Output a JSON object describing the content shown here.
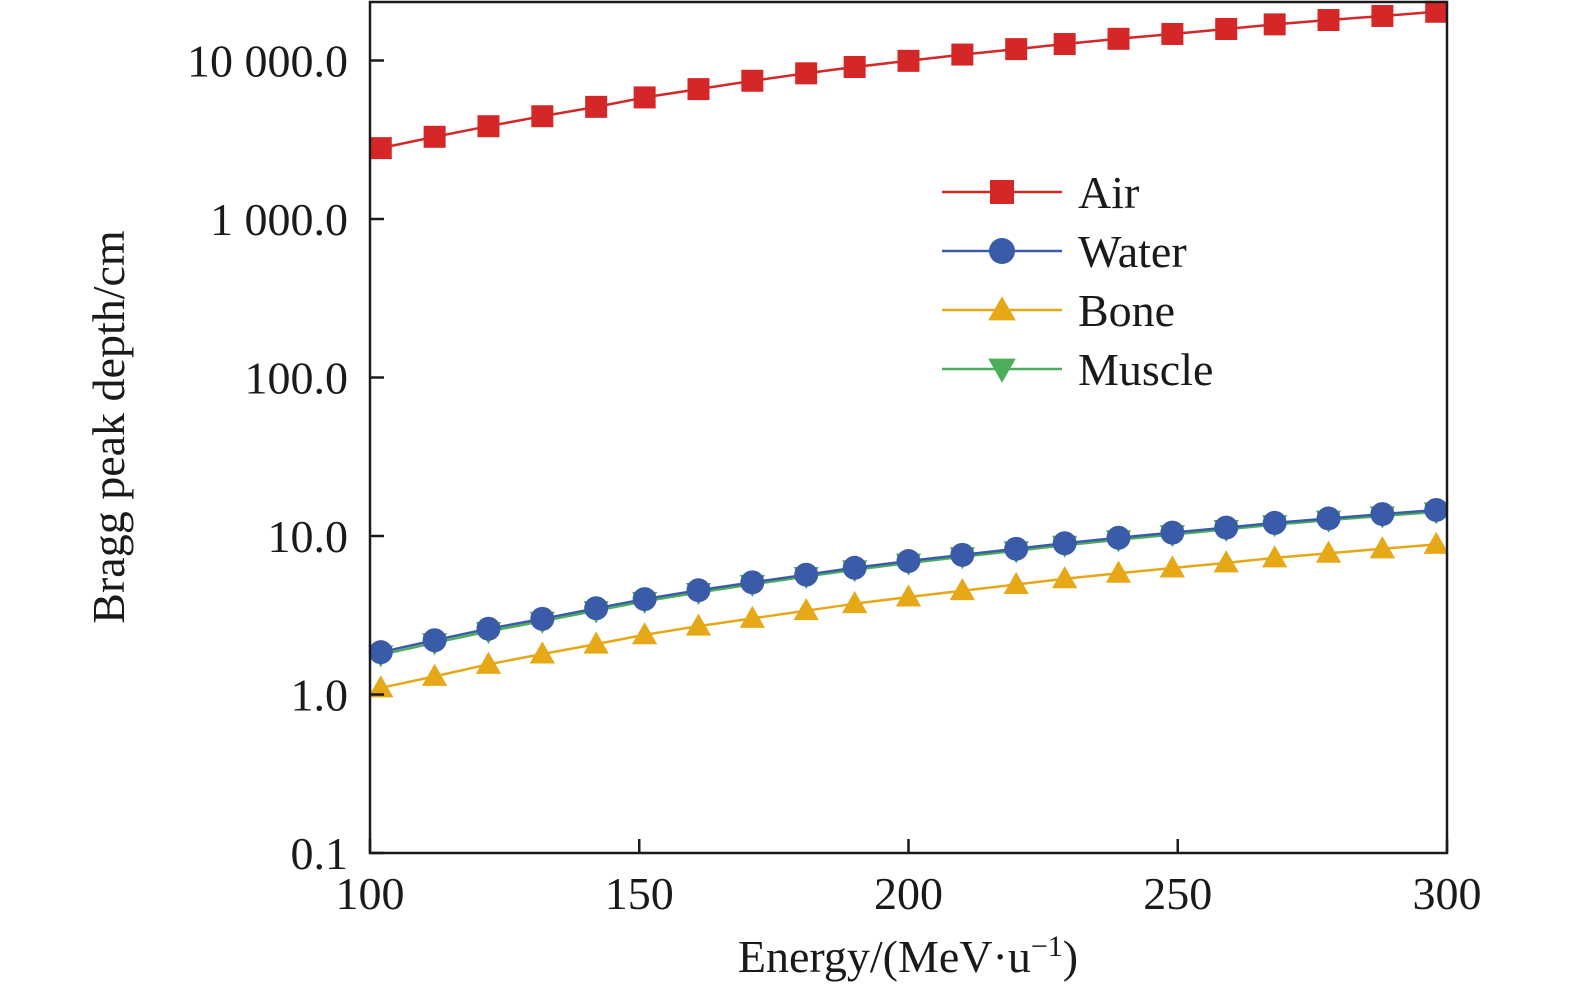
{
  "chart_data": {
    "type": "line",
    "title": "",
    "xlabel": "Energy/(MeV·u",
    "xlabel_sup": "−1",
    "xlabel_end": ")",
    "ylabel": "Bragg peak depth/cm",
    "xscale": "linear",
    "yscale": "log",
    "xlim": [
      100,
      300
    ],
    "ylim": [
      0.1,
      20000
    ],
    "xticks": [
      100,
      150,
      200,
      250,
      300
    ],
    "xtick_labels": [
      "100",
      "150",
      "200",
      "250",
      "300"
    ],
    "yticks": [
      0.1,
      1,
      10,
      100,
      1000,
      10000
    ],
    "ytick_labels": [
      "0.1",
      "1.0",
      "10.0",
      "100.0",
      "1 000.0",
      "10 000.0"
    ],
    "legend_position": "center-right",
    "grid": false,
    "x": [
      102,
      112,
      122,
      132,
      142,
      151,
      161,
      171,
      181,
      190,
      200,
      210,
      220,
      229,
      239,
      249,
      259,
      268,
      278,
      288,
      298
    ],
    "series": [
      {
        "name": "Air",
        "color": "#d62728",
        "marker": "square",
        "values": [
          2800,
          3300,
          3850,
          4450,
          5100,
          5850,
          6600,
          7450,
          8300,
          9100,
          9950,
          10900,
          11800,
          12700,
          13700,
          14700,
          15800,
          16900,
          18000,
          19100,
          20300
        ]
      },
      {
        "name": "Water",
        "color": "#3a5ca8",
        "marker": "circle",
        "values": [
          1.85,
          2.2,
          2.6,
          3.0,
          3.5,
          4.0,
          4.55,
          5.1,
          5.7,
          6.3,
          6.95,
          7.6,
          8.3,
          9.0,
          9.75,
          10.5,
          11.3,
          12.1,
          12.9,
          13.75,
          14.6
        ]
      },
      {
        "name": "Bone",
        "color": "#e6a817",
        "marker": "triangle-up",
        "values": [
          1.1,
          1.3,
          1.55,
          1.8,
          2.08,
          2.38,
          2.7,
          3.02,
          3.38,
          3.74,
          4.12,
          4.52,
          4.94,
          5.37,
          5.82,
          6.28,
          6.77,
          7.27,
          7.78,
          8.3,
          8.85
        ]
      },
      {
        "name": "Muscle",
        "color": "#4cae5a",
        "marker": "triangle-down",
        "values": [
          1.78,
          2.12,
          2.5,
          2.9,
          3.38,
          3.87,
          4.4,
          4.95,
          5.55,
          6.13,
          6.75,
          7.4,
          8.07,
          8.75,
          9.48,
          10.2,
          11.0,
          11.8,
          12.6,
          13.4,
          14.2
        ]
      }
    ]
  }
}
